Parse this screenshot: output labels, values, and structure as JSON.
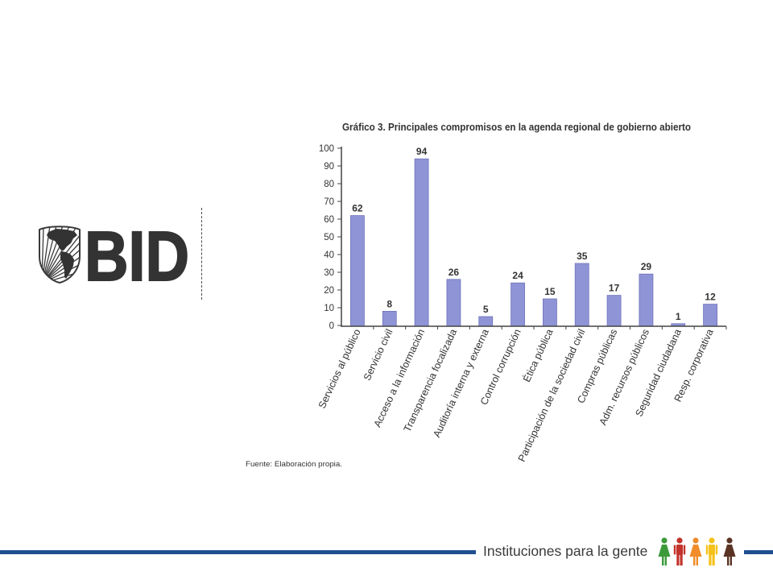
{
  "logo": {
    "text": "BID",
    "icon": "americas-globe-emblem-icon"
  },
  "chart_data": {
    "type": "bar",
    "title": "Gráfico 3. Principales compromisos en la agenda regional de gobierno abierto",
    "categories": [
      "Servicios al público",
      "Servicio civil",
      "Acceso a la información",
      "Transparencia focalizada",
      "Auditoría interna y externa",
      "Control corrupción",
      "Ética pública",
      "Participación de la sociedad civil",
      "Compras públicas",
      "Adm. recursos públicos",
      "Seguridad ciudadana",
      "Resp. corporativa"
    ],
    "values": [
      62,
      8,
      94,
      26,
      5,
      24,
      15,
      35,
      17,
      29,
      1,
      12
    ],
    "xlabel": "",
    "ylabel": "",
    "ylim": [
      0,
      100
    ],
    "yticks": [
      0,
      10,
      20,
      30,
      40,
      50,
      60,
      70,
      80,
      90,
      100
    ],
    "grid": false,
    "data_labels": true,
    "source": "Fuente: Elaboración propia."
  },
  "footer": {
    "tagline": "Instituciones para la gente",
    "people": [
      {
        "icon": "person-woman-icon",
        "color": "#3d9a3a"
      },
      {
        "icon": "person-man-icon",
        "color": "#c2332b"
      },
      {
        "icon": "person-woman-icon",
        "color": "#f08c2a"
      },
      {
        "icon": "person-man-icon",
        "color": "#f5c21b"
      },
      {
        "icon": "person-woman-icon",
        "color": "#5b3324"
      }
    ]
  },
  "colors": {
    "bar": "#8f94d7",
    "bar_edge": "#6e73b9",
    "footer_line": "#1f4f8f",
    "logo": "#333333"
  }
}
